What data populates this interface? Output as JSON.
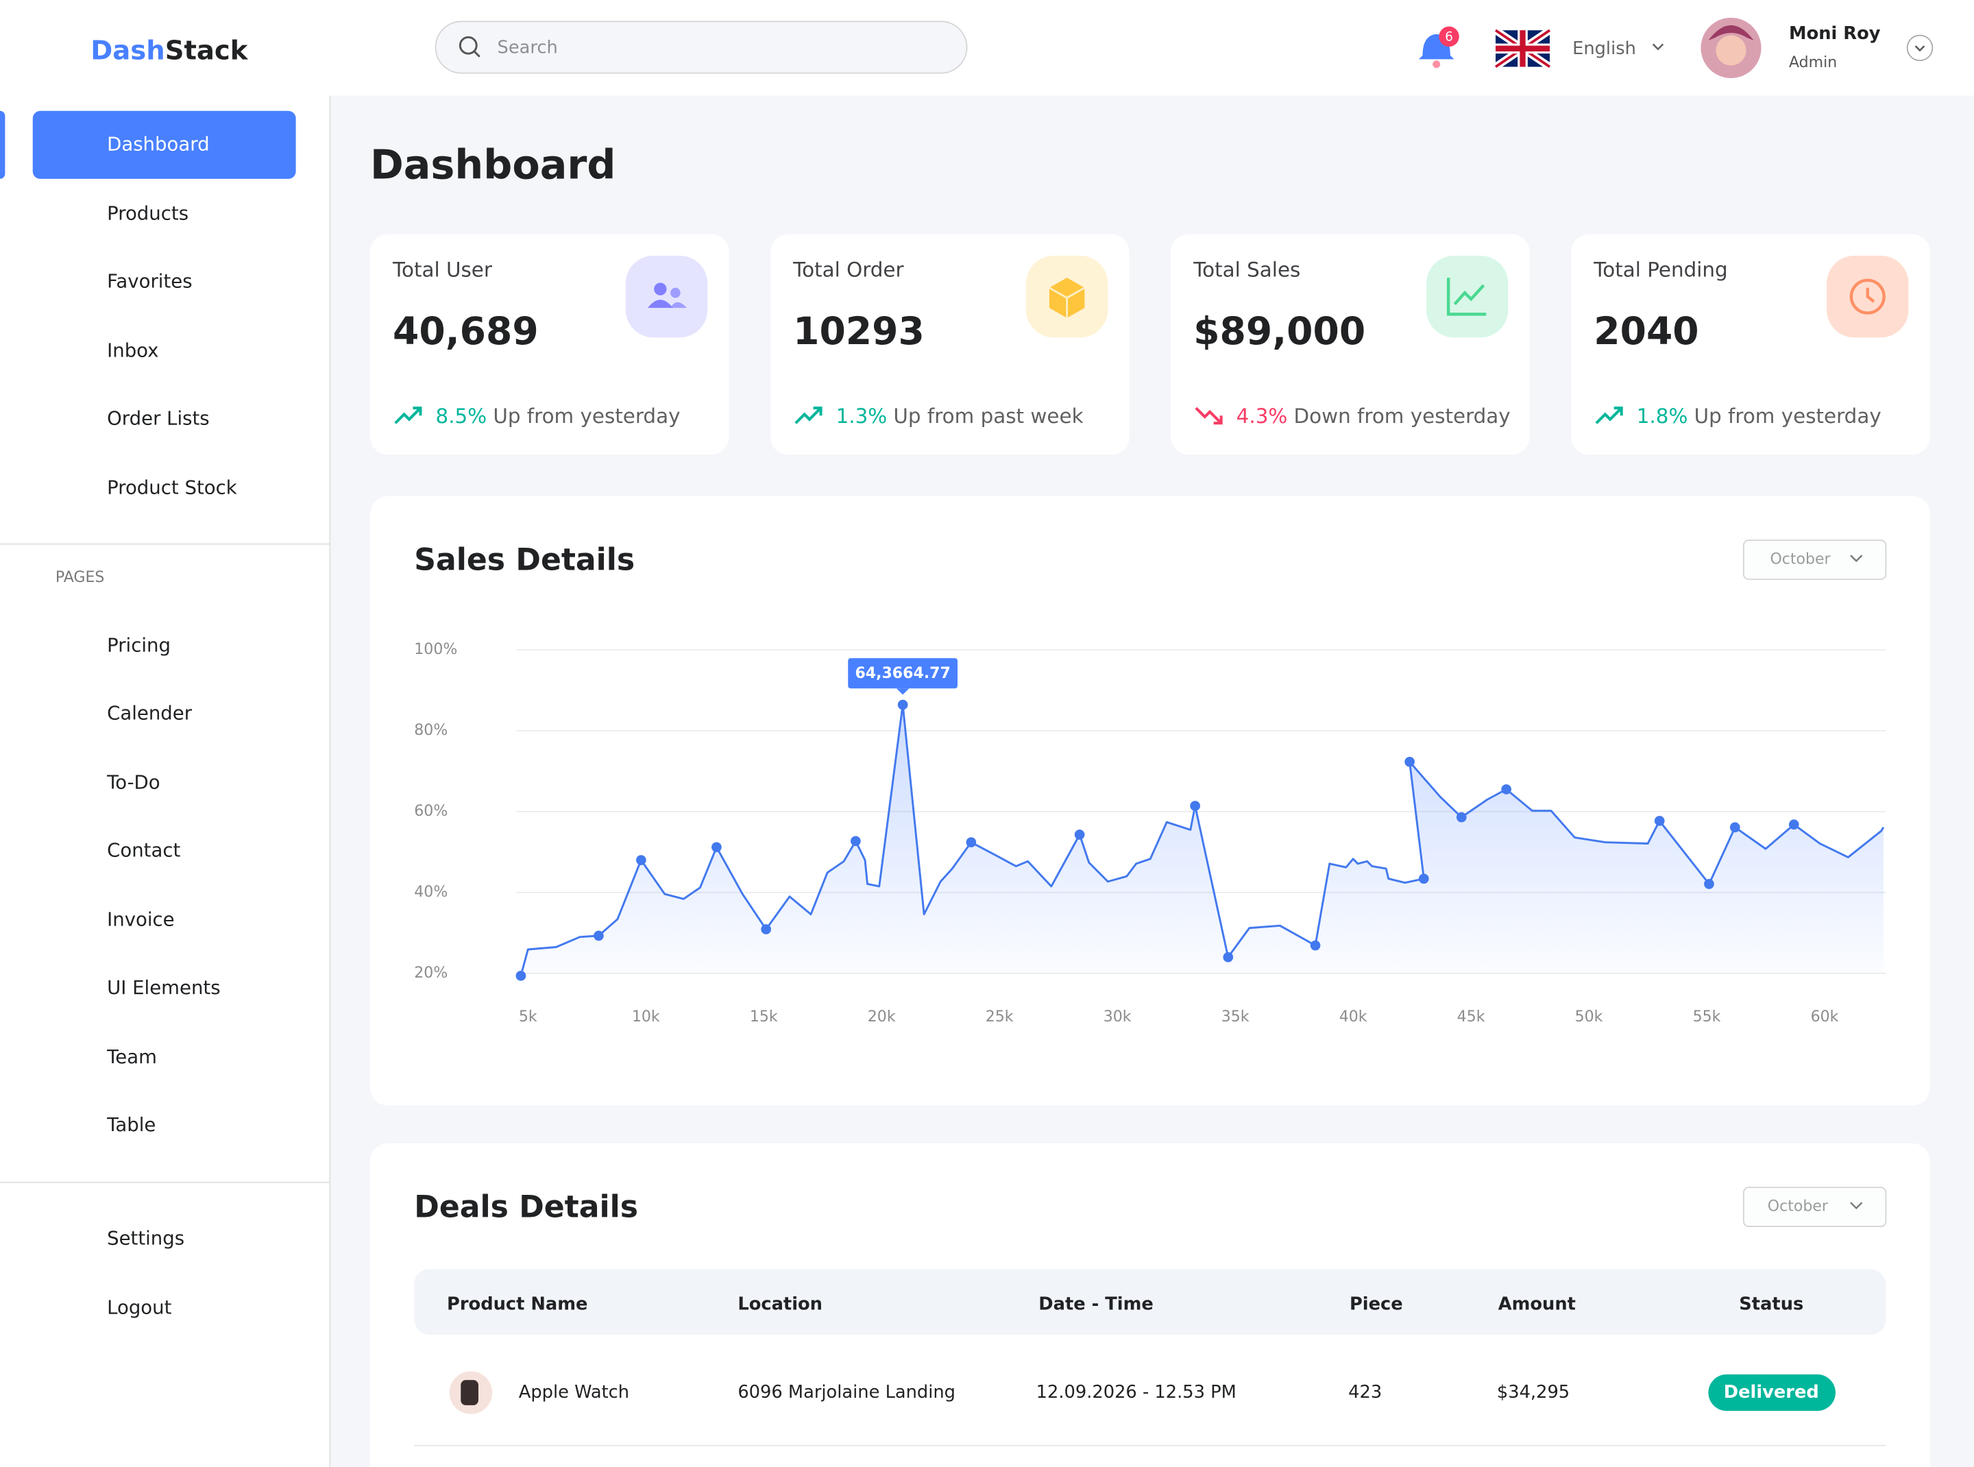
{
  "brand": {
    "first": "Dash",
    "second": "Stack"
  },
  "search_placeholder": "Search",
  "notifications": 6,
  "language": "English",
  "user": {
    "name": "Moni Roy",
    "role": "Admin"
  },
  "nav": {
    "main": [
      "Dashboard",
      "Products",
      "Favorites",
      "Inbox",
      "Order Lists",
      "Product Stock"
    ],
    "pages_heading": "PAGES",
    "pages": [
      "Pricing",
      "Calender",
      "To-Do",
      "Contact",
      "Invoice",
      "UI Elements",
      "Team",
      "Table"
    ],
    "bottom": [
      "Settings",
      "Logout"
    ]
  },
  "page_title": "Dashboard",
  "cards": [
    {
      "title": "Total User",
      "value": "40,689",
      "change": "8.5%",
      "note": "Up from yesterday",
      "trend": "up"
    },
    {
      "title": "Total Order",
      "value": 10293,
      "change": "1.3%",
      "note": "Up from past week",
      "trend": "up"
    },
    {
      "title": "Total Sales",
      "value": "$89,000",
      "change": "4.3%",
      "note": "Down from yesterday",
      "trend": "down"
    },
    {
      "title": "Total Pending",
      "value": 2040,
      "change": "1.8%",
      "note": "Up from yesterday",
      "trend": "up"
    }
  ],
  "chart_data": {
    "type": "line",
    "title": "Sales Details",
    "filter": "October",
    "color": "#4379ee",
    "grid": true,
    "area": true,
    "x": [
      4.7,
      5.0,
      6.2,
      7.2,
      8.0,
      8.8,
      9.8,
      10.8,
      11.6,
      12.3,
      13.0,
      14.1,
      15.1,
      16.1,
      17.0,
      17.7,
      18.4,
      18.9,
      19.3,
      19.4,
      19.9,
      20.9,
      21.8,
      22.5,
      23.0,
      23.8,
      24.9,
      25.7,
      26.2,
      27.2,
      28.4,
      28.8,
      29.6,
      30.4,
      30.8,
      31.4,
      32.1,
      33.1,
      33.3,
      34.7,
      35.6,
      36.9,
      38.4,
      39.0,
      39.7,
      40.0,
      40.2,
      40.6,
      40.8,
      41.4,
      41.5,
      42.2,
      43.0,
      42.4,
      43.7,
      44.6,
      45.7,
      46.5,
      47.6,
      48.4,
      49.4,
      50.7,
      52.5,
      53.0,
      55.1,
      56.2,
      57.5,
      58.7,
      59.8,
      61.0,
      62.4,
      62.5
    ],
    "values": [
      19.4,
      25.9,
      26.5,
      29.0,
      29.3,
      33.4,
      48.0,
      39.6,
      38.4,
      41.2,
      51.2,
      39.6,
      30.9,
      39.0,
      34.6,
      44.9,
      47.7,
      52.7,
      48.0,
      42.1,
      41.5,
      86.4,
      34.6,
      42.7,
      45.9,
      52.4,
      49.0,
      46.5,
      47.7,
      41.5,
      54.3,
      47.4,
      42.7,
      44.0,
      47.1,
      48.3,
      57.4,
      55.5,
      61.4,
      24.0,
      31.2,
      31.8,
      26.9,
      47.1,
      46.2,
      48.3,
      47.1,
      47.7,
      46.5,
      45.9,
      43.4,
      42.4,
      43.4,
      72.3,
      63.6,
      58.6,
      63.0,
      65.5,
      60.2,
      60.2,
      53.6,
      52.4,
      52.1,
      57.7,
      42.1,
      56.1,
      50.8,
      56.8,
      52.1,
      48.7,
      55.2,
      56.1
    ],
    "markers": [
      true,
      false,
      false,
      false,
      true,
      false,
      true,
      false,
      false,
      false,
      true,
      false,
      true,
      false,
      false,
      false,
      false,
      true,
      false,
      false,
      false,
      true,
      false,
      false,
      false,
      true,
      false,
      false,
      false,
      false,
      true,
      false,
      false,
      false,
      false,
      false,
      false,
      false,
      true,
      true,
      false,
      false,
      true,
      false,
      false,
      false,
      false,
      false,
      false,
      false,
      false,
      false,
      true,
      true,
      false,
      true,
      false,
      true,
      false,
      false,
      false,
      false,
      false,
      true,
      true,
      true,
      false,
      true,
      false,
      false,
      false,
      false
    ],
    "annotation": {
      "label": "64,3664.77",
      "index": 21
    },
    "xlim": [
      4.5,
      62.6
    ],
    "ylim": [
      20,
      100
    ],
    "xticks": [
      {
        "value": 5,
        "label": "5k"
      },
      {
        "value": 10,
        "label": "10k"
      },
      {
        "value": 15,
        "label": "15k"
      },
      {
        "value": 20,
        "label": "20k"
      },
      {
        "value": 25,
        "label": "25k"
      },
      {
        "value": 30,
        "label": "30k"
      },
      {
        "value": 35,
        "label": "35k"
      },
      {
        "value": 40,
        "label": "40k"
      },
      {
        "value": 45,
        "label": "45k"
      },
      {
        "value": 50,
        "label": "50k"
      },
      {
        "value": 55,
        "label": "55k"
      },
      {
        "value": 60,
        "label": "60k"
      }
    ],
    "yticks": [
      {
        "value": 20,
        "label": "20%"
      },
      {
        "value": 40,
        "label": "40%"
      },
      {
        "value": 60,
        "label": "60%"
      },
      {
        "value": 80,
        "label": "80%"
      },
      {
        "value": 100,
        "label": "100%"
      }
    ]
  },
  "deals": {
    "title": "Deals Details",
    "filter": "October",
    "columns": [
      "Product Name",
      "Location",
      "Date - Time",
      "Piece",
      "Amount",
      "Status"
    ],
    "rows": [
      [
        "Apple Watch",
        "6096 Marjolaine Landing",
        "12.09.2026 - 12.53 PM",
        "423",
        "$34,295",
        "Delivered"
      ]
    ]
  }
}
